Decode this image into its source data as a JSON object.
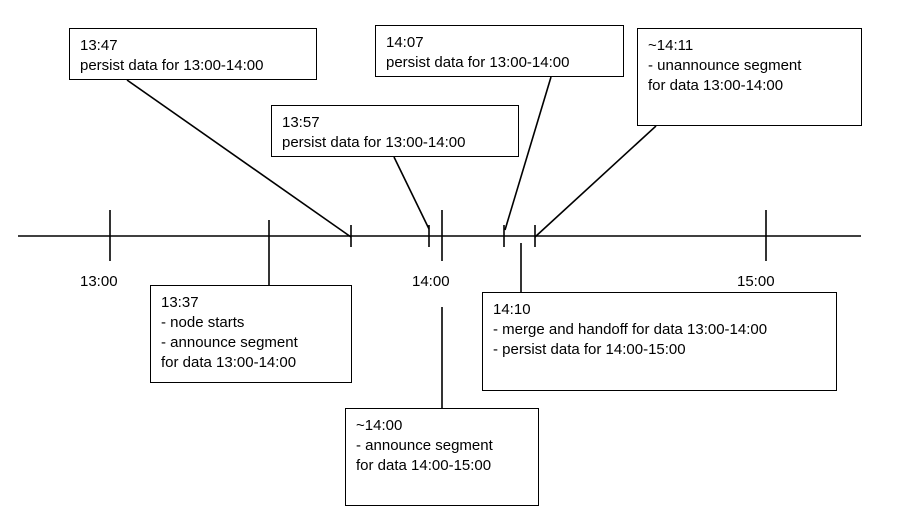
{
  "hour_labels": [
    "13:00",
    "14:00",
    "15:00"
  ],
  "events": [
    {
      "id": "e1347",
      "time": "13:47",
      "lines": [
        "persist data for 13:00-14:00"
      ]
    },
    {
      "id": "e1357",
      "time": "13:57",
      "lines": [
        "persist data for 13:00-14:00"
      ]
    },
    {
      "id": "e1407",
      "time": "14:07",
      "lines": [
        "persist data for 13:00-14:00"
      ]
    },
    {
      "id": "e1411",
      "time": "~14:11",
      "lines": [
        "- unannounce segment",
        "for data 13:00-14:00"
      ]
    },
    {
      "id": "e1337",
      "time": "13:37",
      "lines": [
        "- node starts",
        "- announce segment",
        "for data 13:00-14:00"
      ]
    },
    {
      "id": "e1400",
      "time": "~14:00",
      "lines": [
        "- announce segment",
        "for data 14:00-15:00"
      ]
    },
    {
      "id": "e1410",
      "time": "14:10",
      "lines": [
        "- merge and handoff for data 13:00-14:00",
        "- persist data for 14:00-15:00"
      ]
    }
  ]
}
